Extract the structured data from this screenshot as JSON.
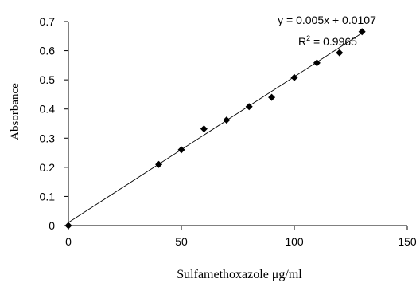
{
  "chart_data": {
    "type": "scatter",
    "xlabel": "Sulfamethoxazole μg/ml",
    "ylabel": "Absorbance",
    "xlim": [
      0,
      150
    ],
    "ylim": [
      0,
      0.7
    ],
    "x_ticks": [
      0,
      50,
      100,
      150
    ],
    "y_ticks": [
      0,
      0.1,
      0.2,
      0.3,
      0.4,
      0.5,
      0.6,
      0.7
    ],
    "x_tick_labels": [
      "0",
      "50",
      "100",
      "150"
    ],
    "y_tick_labels": [
      "0",
      "0.1",
      "0.2",
      "0.3",
      "0.4",
      "0.5",
      "0.6",
      "0.7"
    ],
    "grid": false,
    "series": [
      {
        "x": [
          0,
          40,
          50,
          60,
          70,
          80,
          90,
          100,
          110,
          120,
          130
        ],
        "y": [
          0,
          0.21,
          0.26,
          0.332,
          0.362,
          0.408,
          0.44,
          0.508,
          0.558,
          0.593,
          0.665
        ],
        "marker": "diamond",
        "color": "#000000"
      }
    ],
    "trendline": {
      "slope": 0.005,
      "intercept": 0.0107,
      "x_range": [
        0,
        130
      ],
      "color": "#000000"
    },
    "annotations": {
      "equation": "y = 0.005x + 0.0107",
      "r2_label": "R",
      "r2_sup": "2",
      "r2_value": " = 0.9965"
    }
  }
}
